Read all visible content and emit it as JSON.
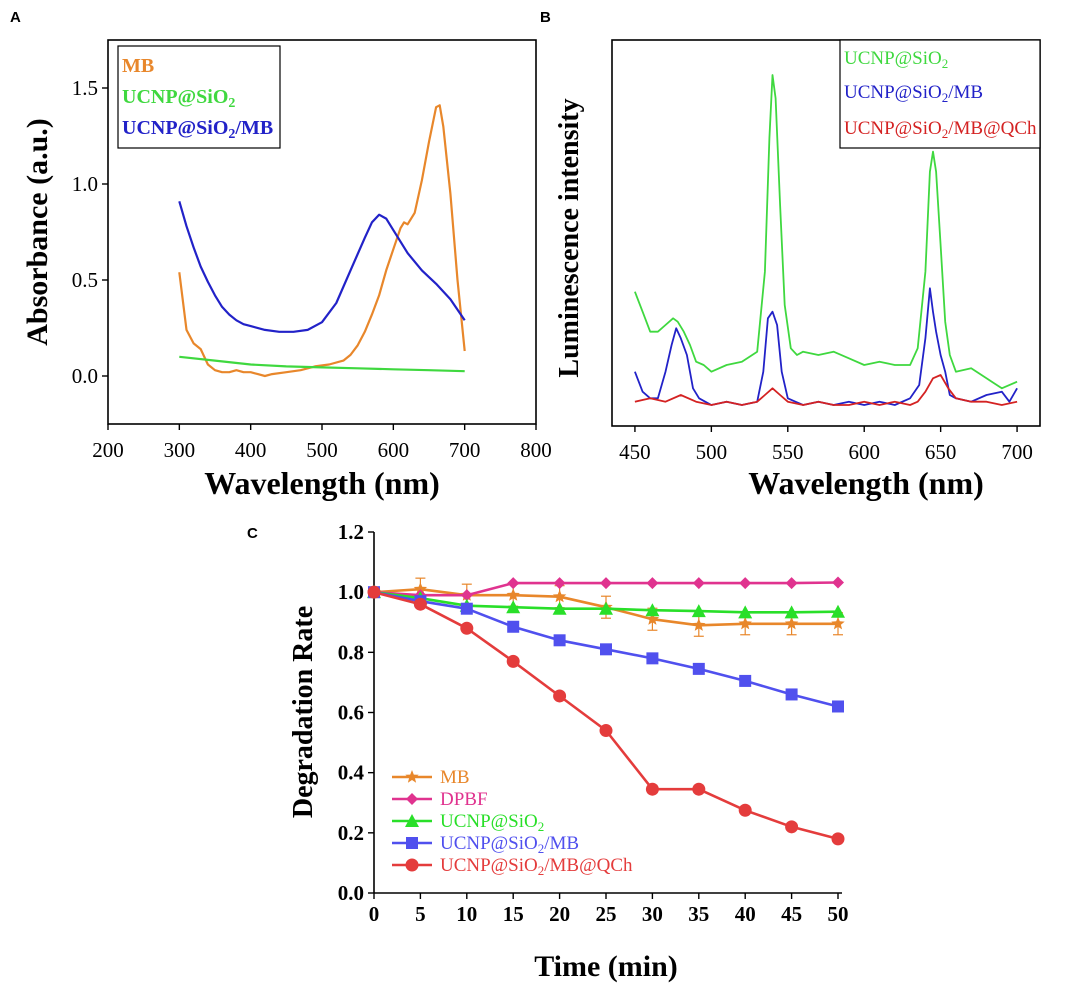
{
  "chart_data": [
    {
      "panel": "A",
      "type": "line",
      "xlabel": "Wavelength (nm)",
      "ylabel": "Absorbance (a.u.)",
      "xlim": [
        200,
        800
      ],
      "ylim": [
        -0.25,
        1.75
      ],
      "xticks": [
        "200",
        "300",
        "400",
        "500",
        "600",
        "700",
        "800"
      ],
      "yticks": [
        "0.0",
        "0.5",
        "1.0",
        "1.5"
      ],
      "legend": [
        "MB",
        "UCNP@SiO2",
        "UCNP@SiO2/MB"
      ],
      "series": [
        {
          "name": "MB",
          "color": "#e8872b",
          "x": [
            300,
            310,
            320,
            330,
            340,
            350,
            360,
            370,
            380,
            390,
            400,
            410,
            420,
            430,
            450,
            470,
            490,
            510,
            530,
            540,
            550,
            560,
            570,
            580,
            590,
            600,
            610,
            615,
            620,
            630,
            640,
            650,
            660,
            665,
            670,
            680,
            690,
            700
          ],
          "y": [
            0.54,
            0.24,
            0.17,
            0.14,
            0.06,
            0.03,
            0.02,
            0.02,
            0.03,
            0.02,
            0.02,
            0.01,
            0.0,
            0.01,
            0.02,
            0.03,
            0.05,
            0.06,
            0.08,
            0.11,
            0.16,
            0.23,
            0.32,
            0.42,
            0.55,
            0.66,
            0.77,
            0.8,
            0.79,
            0.85,
            1.02,
            1.22,
            1.4,
            1.41,
            1.3,
            0.95,
            0.5,
            0.13
          ]
        },
        {
          "name": "UCNP@SiO2",
          "color": "#3fd83f",
          "x": [
            300,
            350,
            400,
            450,
            500,
            550,
            600,
            650,
            700
          ],
          "y": [
            0.1,
            0.08,
            0.06,
            0.05,
            0.045,
            0.04,
            0.035,
            0.03,
            0.025
          ]
        },
        {
          "name": "UCNP@SiO2/MB",
          "color": "#2222c8",
          "x": [
            300,
            310,
            320,
            330,
            340,
            350,
            360,
            370,
            380,
            390,
            400,
            420,
            440,
            460,
            480,
            500,
            520,
            540,
            560,
            570,
            580,
            590,
            600,
            620,
            640,
            660,
            680,
            700
          ],
          "y": [
            0.91,
            0.78,
            0.67,
            0.57,
            0.49,
            0.42,
            0.36,
            0.32,
            0.29,
            0.27,
            0.26,
            0.24,
            0.23,
            0.23,
            0.24,
            0.28,
            0.38,
            0.55,
            0.72,
            0.8,
            0.84,
            0.82,
            0.76,
            0.64,
            0.55,
            0.48,
            0.4,
            0.29
          ]
        }
      ]
    },
    {
      "panel": "B",
      "type": "line",
      "xlabel": "Wavelength (nm)",
      "ylabel": "Luminescence intensity",
      "xlim": [
        435,
        715
      ],
      "ylim": [
        0,
        1.08
      ],
      "xticks": [
        "450",
        "500",
        "550",
        "600",
        "650",
        "700"
      ],
      "legend": [
        "UCNP@SiO2",
        "UCNP@SiO2/MB",
        "UCNP@SiO2/MB@QCh"
      ],
      "series": [
        {
          "name": "UCNP@SiO2",
          "color": "#3fd83f",
          "x": [
            450,
            455,
            460,
            465,
            470,
            475,
            478,
            482,
            486,
            490,
            495,
            500,
            510,
            520,
            530,
            535,
            538,
            540,
            542,
            545,
            548,
            552,
            556,
            560,
            570,
            580,
            590,
            600,
            610,
            620,
            630,
            635,
            640,
            643,
            645,
            647,
            650,
            653,
            656,
            660,
            670,
            680,
            690,
            700
          ],
          "y": [
            0.34,
            0.28,
            0.22,
            0.22,
            0.24,
            0.26,
            0.25,
            0.22,
            0.18,
            0.13,
            0.12,
            0.1,
            0.12,
            0.13,
            0.16,
            0.4,
            0.8,
            0.99,
            0.92,
            0.6,
            0.3,
            0.17,
            0.15,
            0.16,
            0.15,
            0.16,
            0.14,
            0.12,
            0.13,
            0.12,
            0.12,
            0.17,
            0.4,
            0.7,
            0.76,
            0.7,
            0.48,
            0.25,
            0.15,
            0.1,
            0.11,
            0.08,
            0.05,
            0.07
          ]
        },
        {
          "name": "UCNP@SiO2/MB",
          "color": "#2222c8",
          "x": [
            450,
            455,
            460,
            465,
            470,
            474,
            477,
            480,
            484,
            488,
            492,
            496,
            500,
            510,
            520,
            530,
            534,
            537,
            540,
            543,
            546,
            550,
            555,
            560,
            570,
            580,
            590,
            600,
            610,
            620,
            630,
            636,
            640,
            643,
            645,
            647,
            650,
            653,
            656,
            660,
            670,
            680,
            690,
            695,
            700
          ],
          "y": [
            0.1,
            0.04,
            0.02,
            0.02,
            0.1,
            0.18,
            0.23,
            0.2,
            0.15,
            0.05,
            0.02,
            0.01,
            0.0,
            0.01,
            0.0,
            0.01,
            0.1,
            0.26,
            0.28,
            0.24,
            0.1,
            0.02,
            0.01,
            0.0,
            0.01,
            0.0,
            0.01,
            0.0,
            0.01,
            0.0,
            0.02,
            0.06,
            0.2,
            0.35,
            0.28,
            0.22,
            0.15,
            0.1,
            0.03,
            0.02,
            0.01,
            0.03,
            0.04,
            0.01,
            0.05
          ]
        },
        {
          "name": "UCNP@SiO2/MB@QCh",
          "color": "#d42222",
          "x": [
            450,
            460,
            470,
            480,
            490,
            500,
            510,
            520,
            530,
            535,
            540,
            545,
            550,
            560,
            570,
            580,
            590,
            600,
            610,
            620,
            630,
            635,
            640,
            645,
            650,
            655,
            660,
            670,
            680,
            690,
            700
          ],
          "y": [
            0.01,
            0.02,
            0.01,
            0.03,
            0.01,
            0.0,
            0.01,
            0.0,
            0.01,
            0.03,
            0.05,
            0.03,
            0.01,
            0.0,
            0.01,
            0.0,
            0.0,
            0.01,
            0.0,
            0.01,
            0.0,
            0.01,
            0.04,
            0.08,
            0.09,
            0.05,
            0.02,
            0.01,
            0.01,
            0.0,
            0.01
          ]
        }
      ]
    },
    {
      "panel": "C",
      "type": "line",
      "xlabel": "Time (min)",
      "ylabel": "Degradation Rate",
      "xlim": [
        0,
        50
      ],
      "ylim": [
        0,
        1.2
      ],
      "xticks": [
        "0",
        "5",
        "10",
        "15",
        "20",
        "25",
        "30",
        "35",
        "40",
        "45",
        "50"
      ],
      "yticks": [
        "0.0",
        "0.2",
        "0.4",
        "0.6",
        "0.8",
        "1.0",
        "1.2"
      ],
      "x": [
        0,
        5,
        10,
        15,
        20,
        25,
        30,
        35,
        40,
        45,
        50
      ],
      "legend": [
        "MB",
        "DPBF",
        "UCNP@SiO2",
        "UCNP@SiO2/MB",
        "UCNP@SiO2/MB@QCh"
      ],
      "series": [
        {
          "name": "MB",
          "color": "#e8872b",
          "marker": "star",
          "values": [
            1.0,
            1.01,
            0.99,
            0.99,
            0.985,
            0.95,
            0.91,
            0.89,
            0.895,
            0.895,
            0.895
          ]
        },
        {
          "name": "DPBF",
          "color": "#e0338f",
          "marker": "diamond",
          "values": [
            1.0,
            0.99,
            0.99,
            1.03,
            1.03,
            1.03,
            1.03,
            1.03,
            1.03,
            1.03,
            1.032
          ]
        },
        {
          "name": "UCNP@SiO2",
          "color": "#29df29",
          "marker": "triangle",
          "values": [
            1.0,
            0.98,
            0.955,
            0.95,
            0.945,
            0.945,
            0.94,
            0.937,
            0.933,
            0.933,
            0.935
          ]
        },
        {
          "name": "UCNP@SiO2/MB",
          "color": "#5050ee",
          "marker": "square",
          "values": [
            1.0,
            0.97,
            0.945,
            0.885,
            0.84,
            0.81,
            0.78,
            0.745,
            0.705,
            0.66,
            0.62
          ]
        },
        {
          "name": "UCNP@SiO2/MB@QCh",
          "color": "#e43c3c",
          "marker": "circle",
          "values": [
            1.0,
            0.96,
            0.88,
            0.77,
            0.655,
            0.54,
            0.345,
            0.345,
            0.275,
            0.22,
            0.18
          ]
        }
      ]
    }
  ]
}
